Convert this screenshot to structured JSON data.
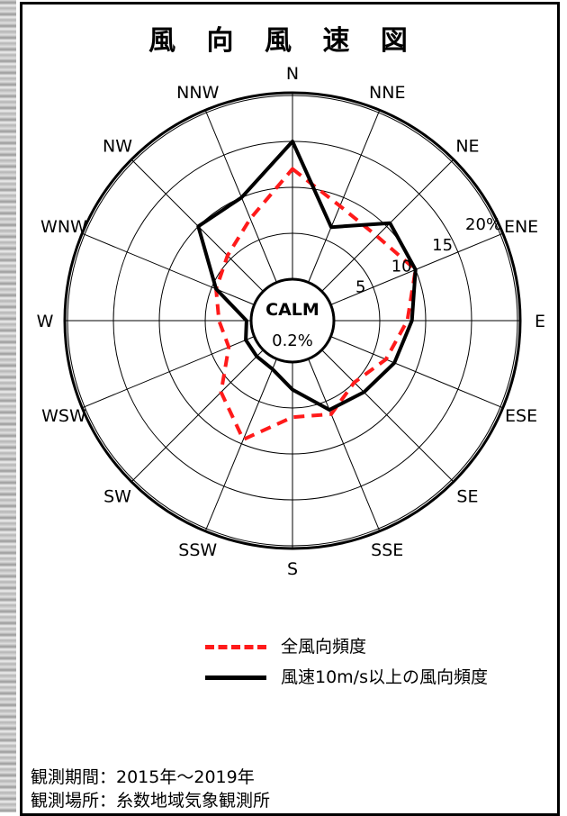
{
  "title": "風 向 風 速 図",
  "chart_data": {
    "type": "radar",
    "title": "風 向 風 速 図",
    "directions": [
      "N",
      "NNE",
      "NE",
      "ENE",
      "E",
      "ESE",
      "SE",
      "SSE",
      "S",
      "SSW",
      "SW",
      "WSW",
      "W",
      "WNW",
      "NW",
      "NNW"
    ],
    "radial_tick_labels": [
      "5",
      "10",
      "15",
      "20%"
    ],
    "rlim": [
      0,
      20
    ],
    "grid": true,
    "center_label": "CALM",
    "calm_value": "0.2%",
    "series": [
      {
        "name": "全風向頻度",
        "style": "dashed",
        "color": "#ff1a1a",
        "values": [
          12,
          9,
          8.5,
          10,
          8,
          6.5,
          5,
          6.5,
          6,
          9.5,
          6.5,
          3,
          3.5,
          4.5,
          5.5,
          7.5
        ]
      },
      {
        "name": "風速10m/s以上の風向頻度",
        "style": "solid",
        "color": "#000000",
        "values": [
          15,
          6.5,
          10.5,
          10,
          8.5,
          7.5,
          6.5,
          6,
          3,
          1.2,
          1,
          1,
          0.5,
          4.5,
          10,
          10
        ]
      }
    ],
    "legend_position": "bottom"
  },
  "legend": [
    {
      "label": "全風向頻度"
    },
    {
      "label": "風速10m/s以上の風向頻度"
    }
  ],
  "notes": {
    "period": "観測期間：2015年～2019年",
    "location": "観測場所：糸数地域気象観測所"
  }
}
